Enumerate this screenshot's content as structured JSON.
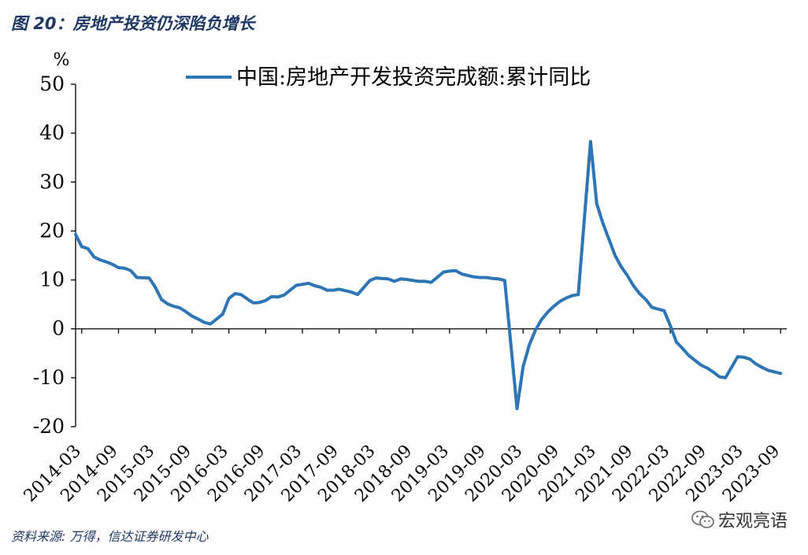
{
  "figure": {
    "title": "图 20：房地产投资仍深陷负增长",
    "source": "资料来源: 万得，信达证券研发中心",
    "watermark": "宏观亮语",
    "watermark_icon": "wechat-icon"
  },
  "chart_data": {
    "type": "line",
    "unit": "%",
    "ylim": [
      -20,
      50
    ],
    "yticks": [
      -20,
      -10,
      0,
      10,
      20,
      30,
      40,
      50
    ],
    "xlim": [
      "2014-02",
      "2023-10"
    ],
    "xticks": [
      "2014-03",
      "2014-09",
      "2015-03",
      "2015-09",
      "2016-03",
      "2016-09",
      "2017-03",
      "2017-09",
      "2018-03",
      "2018-09",
      "2019-03",
      "2019-09",
      "2020-03",
      "2020-09",
      "2021-03",
      "2021-09",
      "2022-03",
      "2022-09",
      "2023-03",
      "2023-09"
    ],
    "grid": false,
    "legend_position": "top",
    "series": [
      {
        "name": "中国:房地产开发投资完成额:累计同比",
        "color": "#2e75b6",
        "points": [
          [
            "2014-02",
            19.3
          ],
          [
            "2014-03",
            16.8
          ],
          [
            "2014-04",
            16.4
          ],
          [
            "2014-05",
            14.7
          ],
          [
            "2014-06",
            14.1
          ],
          [
            "2014-07",
            13.7
          ],
          [
            "2014-08",
            13.2
          ],
          [
            "2014-09",
            12.5
          ],
          [
            "2014-10",
            12.4
          ],
          [
            "2014-11",
            11.9
          ],
          [
            "2014-12",
            10.5
          ],
          [
            "2015-02",
            10.4
          ],
          [
            "2015-03",
            8.5
          ],
          [
            "2015-04",
            6.0
          ],
          [
            "2015-05",
            5.1
          ],
          [
            "2015-06",
            4.6
          ],
          [
            "2015-07",
            4.3
          ],
          [
            "2015-08",
            3.5
          ],
          [
            "2015-09",
            2.6
          ],
          [
            "2015-10",
            2.0
          ],
          [
            "2015-11",
            1.3
          ],
          [
            "2015-12",
            1.0
          ],
          [
            "2016-02",
            3.0
          ],
          [
            "2016-03",
            6.2
          ],
          [
            "2016-04",
            7.2
          ],
          [
            "2016-05",
            7.0
          ],
          [
            "2016-06",
            6.1
          ],
          [
            "2016-07",
            5.3
          ],
          [
            "2016-08",
            5.4
          ],
          [
            "2016-09",
            5.8
          ],
          [
            "2016-10",
            6.6
          ],
          [
            "2016-11",
            6.5
          ],
          [
            "2016-12",
            6.9
          ],
          [
            "2017-02",
            8.9
          ],
          [
            "2017-03",
            9.1
          ],
          [
            "2017-04",
            9.3
          ],
          [
            "2017-05",
            8.8
          ],
          [
            "2017-06",
            8.5
          ],
          [
            "2017-07",
            7.9
          ],
          [
            "2017-08",
            7.9
          ],
          [
            "2017-09",
            8.1
          ],
          [
            "2017-10",
            7.8
          ],
          [
            "2017-11",
            7.5
          ],
          [
            "2017-12",
            7.0
          ],
          [
            "2018-02",
            9.9
          ],
          [
            "2018-03",
            10.4
          ],
          [
            "2018-04",
            10.3
          ],
          [
            "2018-05",
            10.2
          ],
          [
            "2018-06",
            9.7
          ],
          [
            "2018-07",
            10.2
          ],
          [
            "2018-08",
            10.1
          ],
          [
            "2018-09",
            9.9
          ],
          [
            "2018-10",
            9.7
          ],
          [
            "2018-11",
            9.7
          ],
          [
            "2018-12",
            9.5
          ],
          [
            "2019-02",
            11.6
          ],
          [
            "2019-03",
            11.8
          ],
          [
            "2019-04",
            11.9
          ],
          [
            "2019-05",
            11.2
          ],
          [
            "2019-06",
            10.9
          ],
          [
            "2019-07",
            10.6
          ],
          [
            "2019-08",
            10.5
          ],
          [
            "2019-09",
            10.5
          ],
          [
            "2019-10",
            10.3
          ],
          [
            "2019-11",
            10.2
          ],
          [
            "2019-12",
            9.9
          ],
          [
            "2020-02",
            -16.3
          ],
          [
            "2020-03",
            -7.7
          ],
          [
            "2020-04",
            -3.3
          ],
          [
            "2020-05",
            -0.3
          ],
          [
            "2020-06",
            1.9
          ],
          [
            "2020-07",
            3.4
          ],
          [
            "2020-08",
            4.6
          ],
          [
            "2020-09",
            5.6
          ],
          [
            "2020-10",
            6.3
          ],
          [
            "2020-11",
            6.8
          ],
          [
            "2020-12",
            7.0
          ],
          [
            "2021-02",
            38.3
          ],
          [
            "2021-03",
            25.6
          ],
          [
            "2021-04",
            21.6
          ],
          [
            "2021-05",
            18.3
          ],
          [
            "2021-06",
            15.0
          ],
          [
            "2021-07",
            12.7
          ],
          [
            "2021-08",
            10.9
          ],
          [
            "2021-09",
            8.8
          ],
          [
            "2021-10",
            7.2
          ],
          [
            "2021-11",
            6.0
          ],
          [
            "2021-12",
            4.4
          ],
          [
            "2022-02",
            3.7
          ],
          [
            "2022-03",
            0.7
          ],
          [
            "2022-04",
            -2.7
          ],
          [
            "2022-05",
            -4.0
          ],
          [
            "2022-06",
            -5.4
          ],
          [
            "2022-07",
            -6.4
          ],
          [
            "2022-08",
            -7.4
          ],
          [
            "2022-09",
            -8.0
          ],
          [
            "2022-10",
            -8.8
          ],
          [
            "2022-11",
            -9.8
          ],
          [
            "2022-12",
            -10.0
          ],
          [
            "2023-02",
            -5.7
          ],
          [
            "2023-03",
            -5.8
          ],
          [
            "2023-04",
            -6.2
          ],
          [
            "2023-05",
            -7.2
          ],
          [
            "2023-06",
            -7.9
          ],
          [
            "2023-07",
            -8.5
          ],
          [
            "2023-08",
            -8.8
          ],
          [
            "2023-09",
            -9.1
          ]
        ]
      }
    ]
  }
}
